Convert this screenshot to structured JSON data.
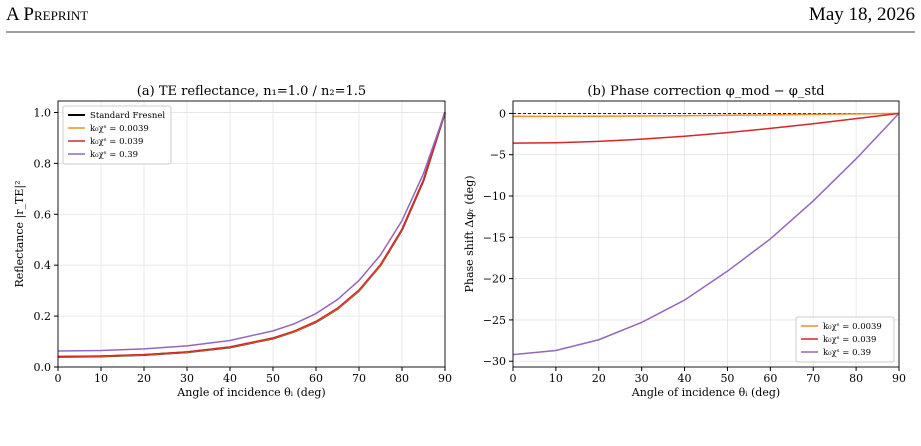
{
  "header": {
    "left": "A Preprint",
    "right": "May 18, 2026"
  },
  "chart_data": [
    {
      "type": "line",
      "title": "(a)  TE reflectance, n₁=1.0 / n₂=1.5",
      "x_label": "Angle of incidence θᵢ (deg)",
      "y_label": "Reflectance |r_TE|²",
      "x": [
        0,
        10,
        20,
        30,
        40,
        50,
        55,
        60,
        65,
        70,
        75,
        80,
        85,
        90
      ],
      "series": [
        {
          "name": "Standard Fresnel",
          "color": "#000000",
          "width": 2,
          "values": [
            0.04,
            0.0417,
            0.0471,
            0.0578,
            0.0772,
            0.112,
            0.1393,
            0.1766,
            0.2281,
            0.2996,
            0.3994,
            0.5386,
            0.7324,
            1.0
          ]
        },
        {
          "name": "k₀χˢ = 0.0039",
          "color": "#f28e2b",
          "width": 1.5,
          "values": [
            0.0402,
            0.0419,
            0.0473,
            0.058,
            0.0774,
            0.1122,
            0.1395,
            0.1769,
            0.2284,
            0.2999,
            0.3997,
            0.5389,
            0.7326,
            1.0
          ]
        },
        {
          "name": "k₀χˢ = 0.039",
          "color": "#d62728",
          "width": 1.5,
          "values": [
            0.0415,
            0.0432,
            0.0487,
            0.0596,
            0.0792,
            0.1143,
            0.1418,
            0.1793,
            0.231,
            0.3026,
            0.4024,
            0.5413,
            0.7343,
            1.0
          ]
        },
        {
          "name": "k₀χˢ = 0.39",
          "color": "#9467bd",
          "width": 1.5,
          "values": [
            0.063,
            0.065,
            0.071,
            0.083,
            0.104,
            0.142,
            0.17,
            0.21,
            0.265,
            0.34,
            0.44,
            0.575,
            0.76,
            1.0
          ]
        }
      ],
      "xlim": [
        0,
        90
      ],
      "xticks": [
        0,
        10,
        20,
        30,
        40,
        50,
        60,
        70,
        80,
        90
      ],
      "ylim": [
        0,
        1.045
      ],
      "yticks": [
        {
          "value": 0,
          "label": "0.0"
        },
        0.2,
        0.4,
        0.6,
        0.8,
        {
          "value": 1,
          "label": "1.0"
        }
      ],
      "grid": true,
      "legend": "upper-left"
    },
    {
      "type": "line",
      "title": "(b)  Phase correction φ_mod − φ_std",
      "x_label": "Angle of incidence θᵢ (deg)",
      "y_label": "Phase shift Δφᵣ (deg)",
      "x": [
        0,
        10,
        20,
        30,
        40,
        50,
        60,
        70,
        80,
        90
      ],
      "reference_line": 0,
      "series": [
        {
          "name": "k₀χˢ = 0.0039",
          "color": "#f28e2b",
          "width": 1.5,
          "values": [
            -0.36,
            -0.355,
            -0.34,
            -0.31,
            -0.28,
            -0.23,
            -0.18,
            -0.12,
            -0.06,
            0
          ]
        },
        {
          "name": "k₀χˢ = 0.039",
          "color": "#d62728",
          "width": 1.5,
          "values": [
            -3.6,
            -3.55,
            -3.39,
            -3.12,
            -2.77,
            -2.33,
            -1.82,
            -1.25,
            -0.64,
            0
          ]
        },
        {
          "name": "k₀χˢ = 0.39",
          "color": "#9467bd",
          "width": 1.5,
          "values": [
            -29.2,
            -28.7,
            -27.4,
            -25.3,
            -22.6,
            -19.1,
            -15.2,
            -10.6,
            -5.5,
            0
          ]
        }
      ],
      "xlim": [
        0,
        90
      ],
      "xticks": [
        0,
        10,
        20,
        30,
        40,
        50,
        60,
        70,
        80,
        90
      ],
      "ylim": [
        -30.7,
        1.5
      ],
      "yticks": [
        {
          "value": -30,
          "label": "−30"
        },
        {
          "value": -25,
          "label": "−25"
        },
        {
          "value": -20,
          "label": "−20"
        },
        {
          "value": -15,
          "label": "−15"
        },
        {
          "value": -10,
          "label": "−10"
        },
        {
          "value": -5,
          "label": "−5"
        },
        0
      ],
      "grid": true,
      "legend": "lower-right"
    }
  ]
}
